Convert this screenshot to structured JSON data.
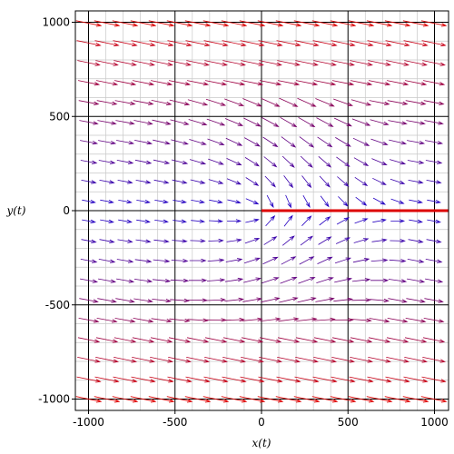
{
  "chart_data": {
    "type": "direction-field",
    "xlabel": "x(t)",
    "ylabel": "y(t)",
    "xlim": [
      -1100,
      1100
    ],
    "ylim": [
      -1100,
      1100
    ],
    "x_ticks": [
      {
        "value": -1000,
        "label": "-1000"
      },
      {
        "value": -500,
        "label": "-500"
      },
      {
        "value": 0,
        "label": "0"
      },
      {
        "value": 500,
        "label": "500"
      },
      {
        "value": 1000,
        "label": "1000"
      }
    ],
    "y_ticks": [
      {
        "value": 1000,
        "label": "1000"
      },
      {
        "value": 500,
        "label": "500"
      },
      {
        "value": 0,
        "label": "0"
      },
      {
        "value": -500,
        "label": "-500"
      },
      {
        "value": -1000,
        "label": "-1000"
      }
    ],
    "grid": true,
    "minor_grid_step": 100,
    "field_grid": {
      "start": -1000,
      "end": 1000,
      "step": 105
    },
    "trajectory": {
      "x": [
        0,
        1100
      ],
      "y": [
        0,
        0
      ],
      "color": "#dd0000"
    },
    "colors": {
      "slow": "#1a00cc",
      "fast": "#dd0000",
      "major_grid": "#000000",
      "minor_grid": "#c8c8c8"
    }
  }
}
